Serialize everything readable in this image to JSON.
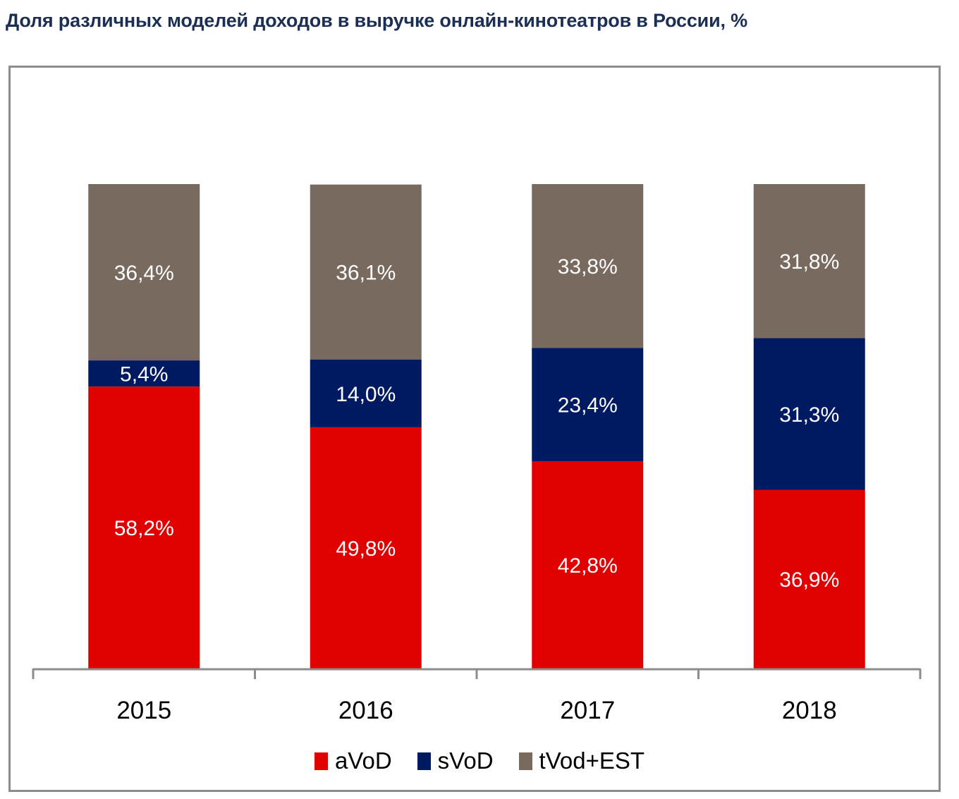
{
  "chart_data": {
    "type": "bar",
    "stacked": true,
    "title": "Доля различных моделей доходов в выручке онлайн-кинотеатров в России, %",
    "xlabel": "",
    "ylabel": "",
    "ylim": [
      0,
      100
    ],
    "grid": false,
    "legend_position": "bottom",
    "categories": [
      "2015",
      "2016",
      "2017",
      "2018"
    ],
    "series": [
      {
        "name": "aVoD",
        "color": "#e00000",
        "values": [
          58.2,
          49.8,
          42.8,
          36.9
        ],
        "labels": [
          "58,2%",
          "49,8%",
          "42,8%",
          "36,9%"
        ]
      },
      {
        "name": "sVoD",
        "color": "#001a62",
        "values": [
          5.4,
          14.0,
          23.4,
          31.3
        ],
        "labels": [
          "5,4%",
          "14,0%",
          "23,4%",
          "31,3%"
        ]
      },
      {
        "name": "tVod+EST",
        "color": "#786a5e",
        "values": [
          36.4,
          36.1,
          33.8,
          31.8
        ],
        "labels": [
          "36,4%",
          "36,1%",
          "33,8%",
          "31,8%"
        ]
      }
    ]
  }
}
